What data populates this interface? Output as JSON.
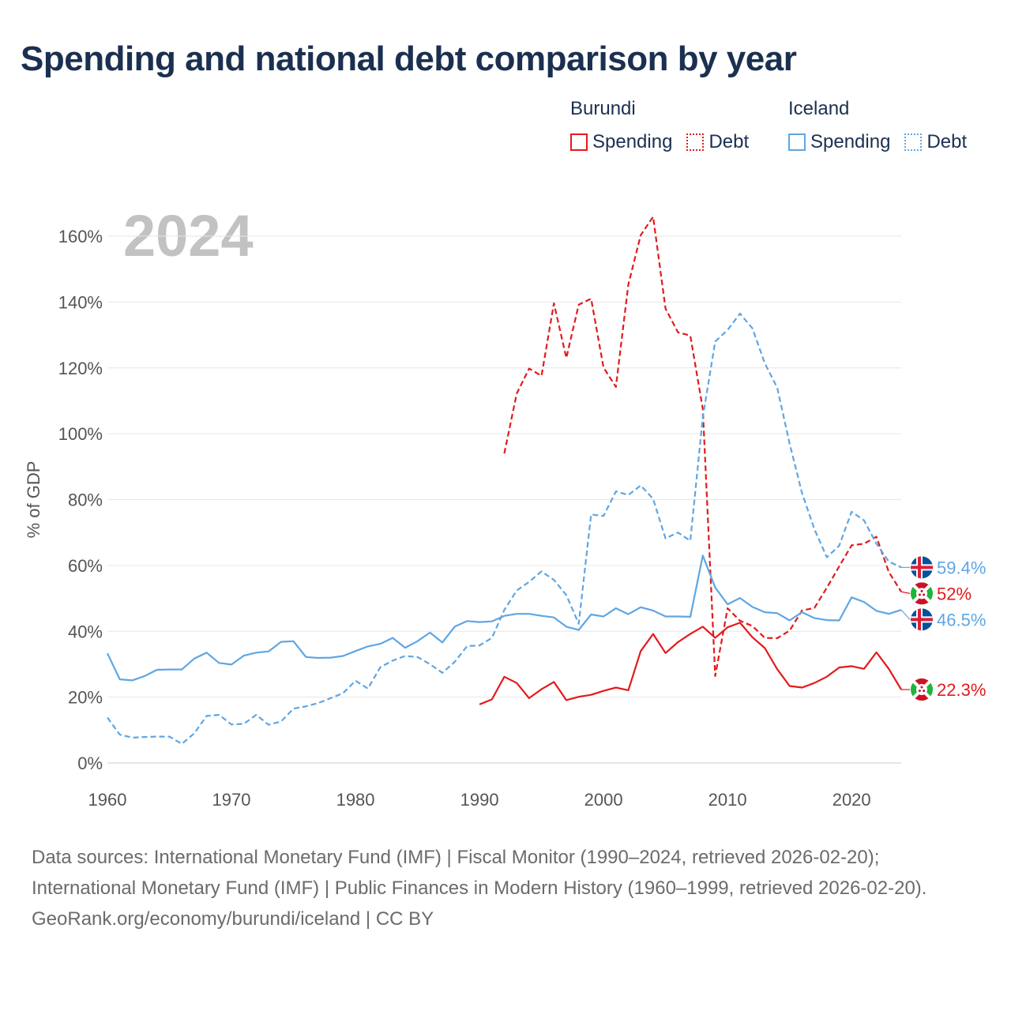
{
  "title": "Spending and national debt comparison by year",
  "legend": {
    "groups": [
      {
        "name": "Burundi",
        "color": "#e31a1c",
        "items": [
          {
            "label": "Spending",
            "style": "solid"
          },
          {
            "label": "Debt",
            "style": "dotted"
          }
        ]
      },
      {
        "name": "Iceland",
        "color": "#5fa6e3",
        "items": [
          {
            "label": "Spending",
            "style": "solid"
          },
          {
            "label": "Debt",
            "style": "dotted"
          }
        ]
      }
    ]
  },
  "sources": {
    "line1": "Data sources: International Monetary Fund (IMF) | Fiscal Monitor (1990–2024, retrieved 2026-02-20); International Monetary Fund (IMF) | Public Finances in Modern History (1960–1999, retrieved 2026-02-20).",
    "line2": "GeoRank.org/economy/burundi/iceland | CC BY"
  },
  "chart_data": {
    "type": "line",
    "year_label": "2024",
    "ylabel": "% of GDP",
    "xlabel": "",
    "xlim": [
      1960,
      2024
    ],
    "ylim": [
      0,
      160
    ],
    "x_ticks": [
      1960,
      1970,
      1980,
      1990,
      2000,
      2010,
      2020
    ],
    "y_ticks": [
      0,
      20,
      40,
      60,
      80,
      100,
      120,
      140,
      160
    ],
    "grid": true,
    "series": [
      {
        "name": "Burundi Spending",
        "country": "Burundi",
        "color": "#e31a1c",
        "dash": "solid",
        "end_label": "22.3%",
        "start_year": 1990,
        "values": [
          17.8,
          19.3,
          26.2,
          24.3,
          19.7,
          22.4,
          24.6,
          19.1,
          20.1,
          20.7,
          21.9,
          22.9,
          22.1,
          34.0,
          39.2,
          33.4,
          36.7,
          39.2,
          41.4,
          38.0,
          41.2,
          42.6,
          38.2,
          34.9,
          28.5,
          23.4,
          22.9,
          24.3,
          26.2,
          29.0,
          29.4,
          28.6,
          33.6,
          28.6,
          22.3
        ]
      },
      {
        "name": "Burundi Debt",
        "country": "Burundi",
        "color": "#e31a1c",
        "dash": "dashed",
        "end_label": "52%",
        "start_year": 1992,
        "values": [
          94.0,
          112.2,
          119.8,
          117.6,
          139.6,
          123.0,
          139.2,
          141.0,
          120.1,
          114.2,
          145.3,
          160.3,
          165.9,
          138.0,
          130.8,
          129.8,
          107.5,
          26.4,
          47.0,
          43.2,
          41.6,
          38.0,
          37.9,
          40.2,
          46.3,
          47.1,
          53.2,
          59.7,
          66.1,
          66.6,
          68.7,
          58.0,
          52.0
        ]
      },
      {
        "name": "Iceland Spending",
        "country": "Iceland",
        "color": "#5fa6e3",
        "dash": "solid",
        "end_label": "46.5%",
        "start_year": 1960,
        "values": [
          33.3,
          25.4,
          25.1,
          26.4,
          28.3,
          28.4,
          28.4,
          31.7,
          33.5,
          30.4,
          29.9,
          32.6,
          33.5,
          33.9,
          36.8,
          37.0,
          32.2,
          31.9,
          32.0,
          32.5,
          34.0,
          35.4,
          36.2,
          38.0,
          35.0,
          37.0,
          39.6,
          36.6,
          41.4,
          43.1,
          42.8,
          43.0,
          44.7,
          45.3,
          45.3,
          44.7,
          44.2,
          41.4,
          40.4,
          45.1,
          44.5,
          47.0,
          45.2,
          47.3,
          46.3,
          44.5,
          44.5,
          44.4,
          63.0,
          53.3,
          48.2,
          50.1,
          47.4,
          45.8,
          45.5,
          43.3,
          45.8,
          44.0,
          43.4,
          43.3,
          50.3,
          48.9,
          46.2,
          45.3,
          46.5
        ]
      },
      {
        "name": "Iceland Debt",
        "country": "Iceland",
        "color": "#5fa6e3",
        "dash": "dashed",
        "end_label": "59.4%",
        "start_year": 1960,
        "values": [
          13.8,
          8.6,
          7.7,
          7.9,
          8.0,
          8.0,
          5.8,
          9.0,
          14.3,
          14.6,
          11.7,
          11.9,
          14.6,
          11.6,
          12.6,
          16.5,
          17.2,
          18.2,
          19.7,
          21.2,
          25.0,
          22.6,
          29.1,
          31.1,
          32.5,
          32.2,
          30.0,
          27.4,
          30.7,
          35.5,
          35.7,
          38.0,
          46.5,
          52.4,
          55.0,
          58.2,
          55.6,
          51.0,
          42.3,
          75.5,
          75.0,
          82.5,
          81.4,
          84.3,
          80.2,
          68.2,
          70.0,
          67.5,
          105.0,
          128.0,
          131.5,
          136.5,
          132.0,
          121.4,
          114.0,
          97.0,
          82.0,
          71.0,
          62.5,
          66.0,
          76.3,
          73.7,
          66.6,
          61.2,
          59.4
        ]
      }
    ]
  }
}
